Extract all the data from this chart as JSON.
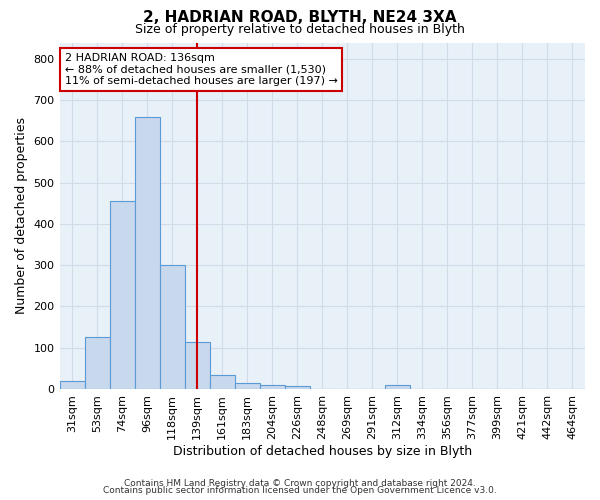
{
  "title1": "2, HADRIAN ROAD, BLYTH, NE24 3XA",
  "title2": "Size of property relative to detached houses in Blyth",
  "xlabel": "Distribution of detached houses by size in Blyth",
  "ylabel": "Number of detached properties",
  "bin_labels": [
    "31sqm",
    "53sqm",
    "74sqm",
    "96sqm",
    "118sqm",
    "139sqm",
    "161sqm",
    "183sqm",
    "204sqm",
    "226sqm",
    "248sqm",
    "269sqm",
    "291sqm",
    "312sqm",
    "334sqm",
    "356sqm",
    "377sqm",
    "399sqm",
    "421sqm",
    "442sqm",
    "464sqm"
  ],
  "bar_values": [
    20,
    125,
    455,
    660,
    300,
    115,
    35,
    15,
    10,
    8,
    0,
    0,
    0,
    10,
    0,
    0,
    0,
    0,
    0,
    0,
    0
  ],
  "bar_color": "#c8d8ed",
  "bar_edge_color": "#5b9bd5",
  "red_line_x": 5.0,
  "annotation_line1": "2 HADRIAN ROAD: 136sqm",
  "annotation_line2": "← 88% of detached houses are smaller (1,530)",
  "annotation_line3": "11% of semi-detached houses are larger (197) →",
  "annotation_box_color": "white",
  "annotation_box_edge_color": "#cc0000",
  "red_line_color": "#cc0000",
  "ylim": [
    0,
    840
  ],
  "yticks": [
    0,
    100,
    200,
    300,
    400,
    500,
    600,
    700,
    800
  ],
  "footer1": "Contains HM Land Registry data © Crown copyright and database right 2024.",
  "footer2": "Contains public sector information licensed under the Open Government Licence v3.0.",
  "background_color": "#e8f0f8",
  "grid_color": "#d0dce8",
  "title1_fontsize": 11,
  "title2_fontsize": 9,
  "axis_label_fontsize": 9,
  "tick_fontsize": 8,
  "footer_fontsize": 6.5
}
